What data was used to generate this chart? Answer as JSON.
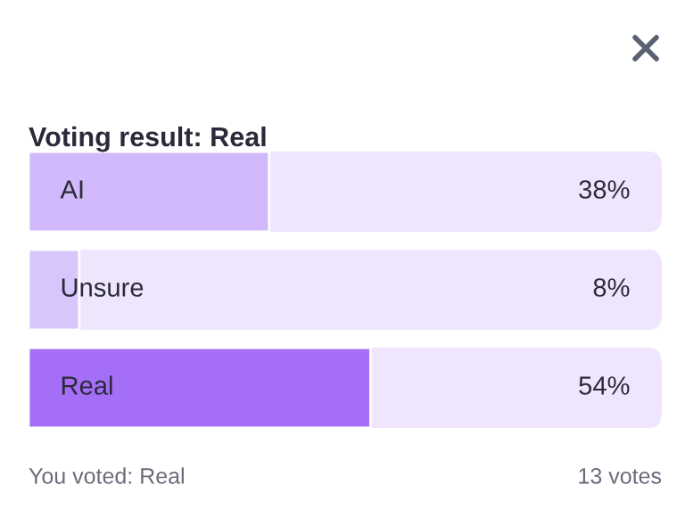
{
  "chart_data": {
    "type": "bar",
    "orientation": "horizontal",
    "title": "Voting result: Real",
    "categories": [
      "AI",
      "Unsure",
      "Real"
    ],
    "values": [
      38,
      8,
      54
    ],
    "colors": [
      "#d2b9fb",
      "#d8c5fb",
      "#a46ef7"
    ],
    "value_labels": [
      "38%",
      "8%",
      "54%"
    ],
    "xlim": [
      0,
      100
    ],
    "tick_labels": false,
    "annotations": [
      "You voted: Real",
      "13 votes"
    ]
  }
}
